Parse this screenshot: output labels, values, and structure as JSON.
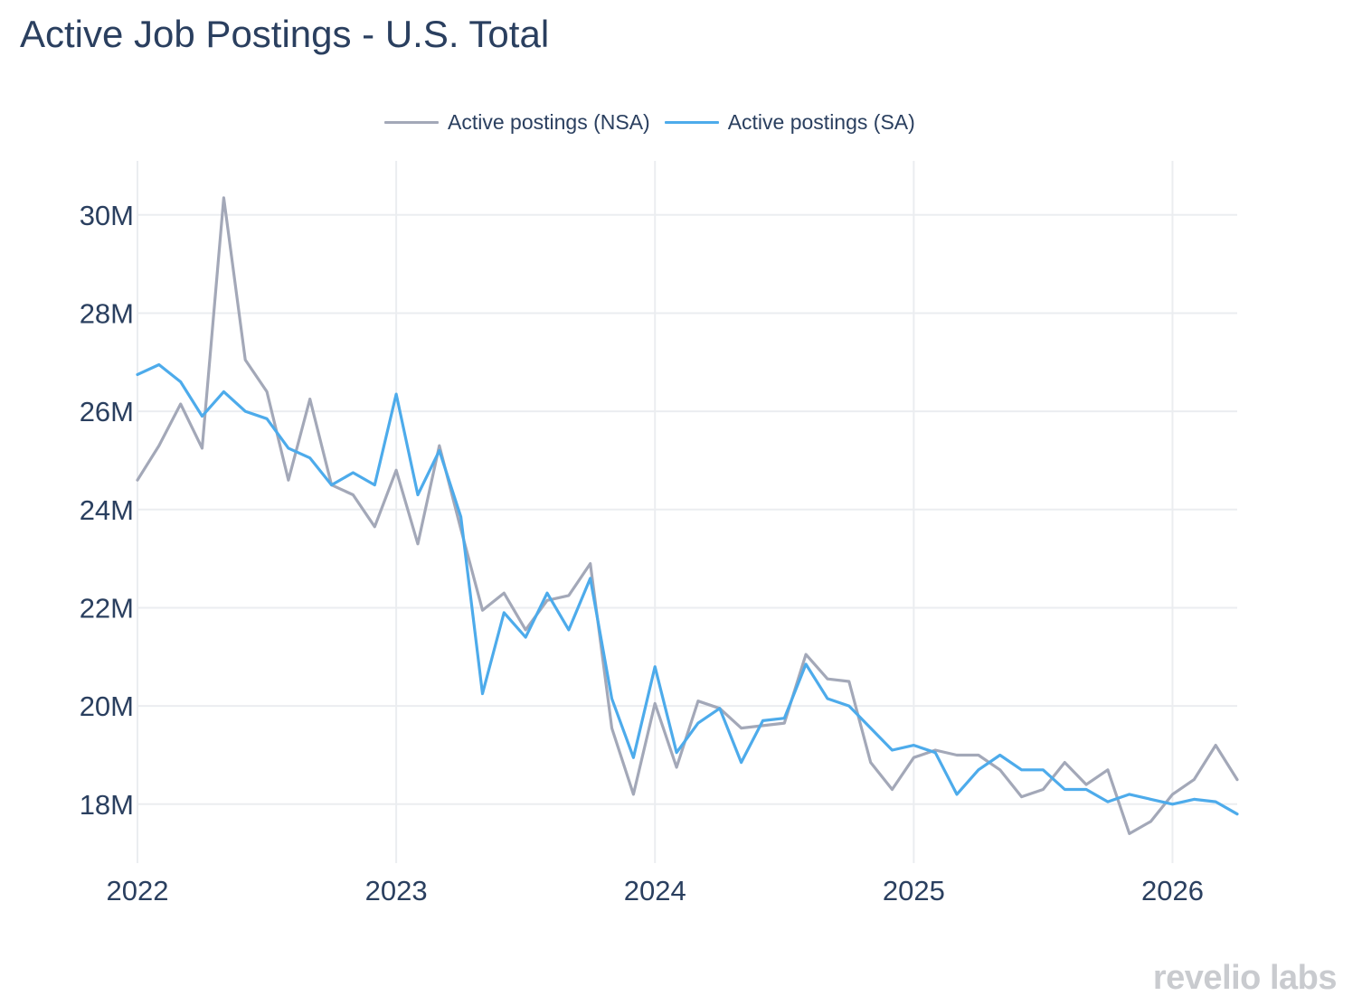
{
  "title": "Active Job Postings - U.S. Total",
  "legend": {
    "nsa_label": "Active postings (NSA)",
    "sa_label": "Active postings (SA)"
  },
  "watermark": "revelio labs",
  "colors": {
    "nsa": "#a3a8b8",
    "sa": "#4dabeb",
    "grid": "#ebedf0",
    "text": "#2a3f5f"
  },
  "chart_data": {
    "type": "line",
    "title": "Active Job Postings - U.S. Total",
    "x_axis": {
      "type": "date",
      "range": [
        "2022-01",
        "2026-04"
      ],
      "ticks": [
        "2022",
        "2023",
        "2024",
        "2025",
        "2026"
      ]
    },
    "y_axis": {
      "range": [
        16.8,
        31.1
      ],
      "unit": "M",
      "ticks": [
        18,
        20,
        22,
        24,
        26,
        28,
        30
      ],
      "tick_labels": [
        "18M",
        "20M",
        "22M",
        "24M",
        "26M",
        "28M",
        "30M"
      ]
    },
    "grid": true,
    "legend_position": "top-center",
    "x": [
      "2022-01",
      "2022-02",
      "2022-03",
      "2022-04",
      "2022-05",
      "2022-06",
      "2022-07",
      "2022-08",
      "2022-09",
      "2022-10",
      "2022-11",
      "2022-12",
      "2023-01",
      "2023-02",
      "2023-03",
      "2023-04",
      "2023-05",
      "2023-06",
      "2023-07",
      "2023-08",
      "2023-09",
      "2023-10",
      "2023-11",
      "2023-12",
      "2024-01",
      "2024-02",
      "2024-03",
      "2024-04",
      "2024-05",
      "2024-06",
      "2024-07",
      "2024-08",
      "2024-09",
      "2024-10",
      "2024-11",
      "2024-12",
      "2025-01",
      "2025-02",
      "2025-03",
      "2025-04",
      "2025-05",
      "2025-06",
      "2025-07",
      "2025-08",
      "2025-09",
      "2025-10",
      "2025-11",
      "2025-12",
      "2026-01",
      "2026-02",
      "2026-03",
      "2026-04"
    ],
    "series": [
      {
        "name": "Active postings (NSA)",
        "color": "#a3a8b8",
        "values": [
          24.6,
          25.3,
          26.15,
          25.25,
          30.35,
          27.05,
          26.4,
          24.6,
          26.25,
          24.5,
          24.3,
          23.65,
          24.8,
          23.3,
          25.3,
          23.6,
          21.95,
          22.3,
          21.55,
          22.15,
          22.25,
          22.9,
          19.55,
          18.2,
          20.05,
          18.75,
          20.1,
          19.95,
          19.55,
          19.6,
          19.65,
          21.05,
          20.55,
          20.5,
          18.85,
          18.3,
          18.95,
          19.1,
          19.0,
          19.0,
          18.7,
          18.15,
          18.3,
          18.85,
          18.4,
          18.7,
          17.4,
          17.65,
          18.2,
          18.5,
          19.2,
          18.5
        ]
      },
      {
        "name": "Active postings (SA)",
        "color": "#4dabeb",
        "values": [
          26.75,
          26.95,
          26.6,
          25.9,
          26.4,
          26.0,
          25.85,
          25.25,
          25.05,
          24.5,
          24.75,
          24.5,
          26.35,
          24.3,
          25.2,
          23.85,
          20.25,
          21.9,
          21.4,
          22.3,
          21.55,
          22.6,
          20.15,
          18.95,
          20.8,
          19.05,
          19.65,
          19.95,
          18.85,
          19.7,
          19.75,
          20.85,
          20.15,
          20.0,
          19.55,
          19.1,
          19.2,
          19.05,
          18.2,
          18.7,
          19.0,
          18.7,
          18.7,
          18.3,
          18.3,
          18.05,
          18.2,
          18.1,
          18.0,
          18.1,
          18.05,
          17.8
        ]
      }
    ]
  }
}
